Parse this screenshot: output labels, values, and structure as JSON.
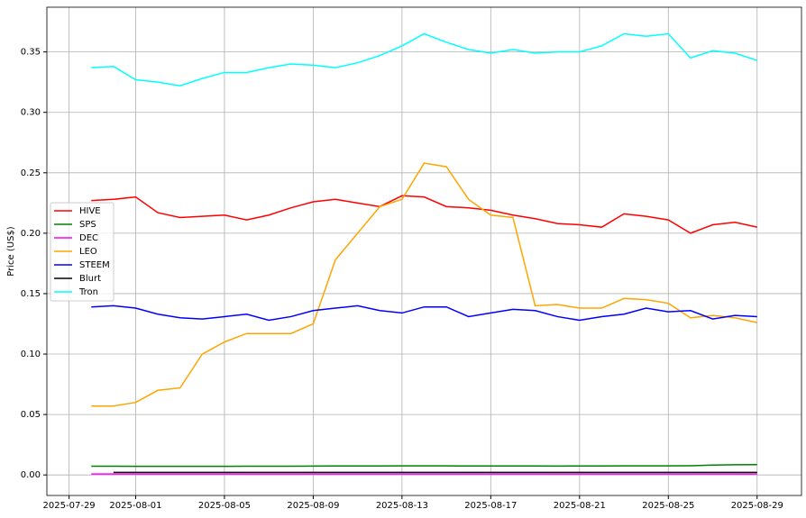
{
  "chart_data": {
    "type": "line",
    "y_label": "Price (US$)",
    "x": [
      "2025-07-30",
      "2025-07-31",
      "2025-08-01",
      "2025-08-02",
      "2025-08-03",
      "2025-08-04",
      "2025-08-05",
      "2025-08-06",
      "2025-08-07",
      "2025-08-08",
      "2025-08-09",
      "2025-08-10",
      "2025-08-11",
      "2025-08-12",
      "2025-08-13",
      "2025-08-14",
      "2025-08-15",
      "2025-08-16",
      "2025-08-17",
      "2025-08-18",
      "2025-08-19",
      "2025-08-20",
      "2025-08-21",
      "2025-08-22",
      "2025-08-23",
      "2025-08-24",
      "2025-08-25",
      "2025-08-26",
      "2025-08-27",
      "2025-08-28",
      "2025-08-29"
    ],
    "series": [
      {
        "name": "HIVE",
        "color": "#ff0000",
        "values": [
          0.227,
          0.228,
          0.23,
          0.217,
          0.213,
          0.214,
          0.215,
          0.211,
          0.215,
          0.221,
          0.226,
          0.228,
          0.225,
          0.222,
          0.231,
          0.23,
          0.222,
          0.221,
          0.219,
          0.215,
          0.212,
          0.208,
          0.207,
          0.205,
          0.216,
          0.214,
          0.211,
          0.2,
          0.207,
          0.209,
          0.205
        ]
      },
      {
        "name": "SPS",
        "color": "#008000",
        "values": [
          0.0072,
          0.0072,
          0.0071,
          0.0071,
          0.0071,
          0.0071,
          0.0071,
          0.0072,
          0.0072,
          0.0072,
          0.0073,
          0.0074,
          0.0074,
          0.0074,
          0.0075,
          0.0075,
          0.0075,
          0.0074,
          0.0074,
          0.0074,
          0.0074,
          0.0073,
          0.0074,
          0.0074,
          0.0075,
          0.0075,
          0.0075,
          0.0076,
          0.0082,
          0.0084,
          0.0085
        ]
      },
      {
        "name": "DEC",
        "color": "#ff00ff",
        "values": [
          0.0008,
          0.0008,
          0.0008,
          0.0008,
          0.0008,
          0.0008,
          0.0008,
          0.0008,
          0.0008,
          0.0008,
          0.0008,
          0.0008,
          0.0008,
          0.0008,
          0.0008,
          0.0008,
          0.0008,
          0.0008,
          0.0008,
          0.0008,
          0.0008,
          0.0008,
          0.0008,
          0.0008,
          0.0008,
          0.0008,
          0.0008,
          0.0008,
          0.0008,
          0.0008,
          0.0008
        ]
      },
      {
        "name": "LEO",
        "color": "#ffa500",
        "values": [
          0.057,
          0.057,
          0.06,
          0.07,
          0.072,
          0.1,
          0.11,
          0.117,
          0.117,
          0.117,
          0.125,
          0.178,
          0.2,
          0.222,
          0.228,
          0.258,
          0.255,
          0.228,
          0.215,
          0.213,
          0.14,
          0.141,
          0.138,
          0.138,
          0.146,
          0.145,
          0.142,
          0.13,
          0.132,
          0.13,
          0.126
        ]
      },
      {
        "name": "STEEM",
        "color": "#0000ff",
        "values": [
          0.139,
          0.14,
          0.138,
          0.133,
          0.13,
          0.129,
          0.131,
          0.133,
          0.128,
          0.131,
          0.136,
          0.138,
          0.14,
          0.136,
          0.134,
          0.139,
          0.139,
          0.131,
          0.134,
          0.137,
          0.136,
          0.131,
          0.128,
          0.131,
          0.133,
          0.138,
          0.135,
          0.136,
          0.129,
          0.132,
          0.131
        ]
      },
      {
        "name": "Blurt",
        "color": "#000000",
        "values": [
          null,
          0.0021,
          0.0021,
          0.0021,
          0.0021,
          0.0021,
          0.0021,
          0.0021,
          0.0021,
          0.0021,
          0.0021,
          0.0021,
          0.0021,
          0.0021,
          0.0021,
          0.0021,
          0.0021,
          0.0021,
          0.0021,
          0.0021,
          0.0021,
          0.0021,
          0.0021,
          0.0021,
          0.0021,
          0.0021,
          0.0021,
          0.0021,
          0.0021,
          0.0021,
          0.0021
        ]
      },
      {
        "name": "Tron",
        "color": "#00ffff",
        "values": [
          0.337,
          0.338,
          0.327,
          0.325,
          0.322,
          0.328,
          0.333,
          0.333,
          0.337,
          0.34,
          0.339,
          0.337,
          0.341,
          0.347,
          0.355,
          0.365,
          0.358,
          0.352,
          0.349,
          0.352,
          0.349,
          0.35,
          0.35,
          0.355,
          0.365,
          0.363,
          0.365,
          0.345,
          0.351,
          0.349,
          0.343
        ]
      }
    ],
    "xlim": [
      "2025-07-28",
      "2025-08-31"
    ],
    "xticks": [
      "2025-07-29",
      "2025-08-01",
      "2025-08-05",
      "2025-08-09",
      "2025-08-13",
      "2025-08-17",
      "2025-08-21",
      "2025-08-25",
      "2025-08-29"
    ],
    "ylim": [
      -0.017,
      0.387
    ],
    "yticks": [
      {
        "value": 0,
        "label": "0.00"
      },
      {
        "value": 0.05,
        "label": "0.05"
      },
      {
        "value": 0.1,
        "label": "0.10"
      },
      {
        "value": 0.15,
        "label": "0.15"
      },
      {
        "value": 0.2,
        "label": "0.20"
      },
      {
        "value": 0.25,
        "label": "0.25"
      },
      {
        "value": 0.3,
        "label": "0.30"
      },
      {
        "value": 0.35,
        "label": "0.35"
      }
    ],
    "grid": true,
    "legend": "left"
  }
}
